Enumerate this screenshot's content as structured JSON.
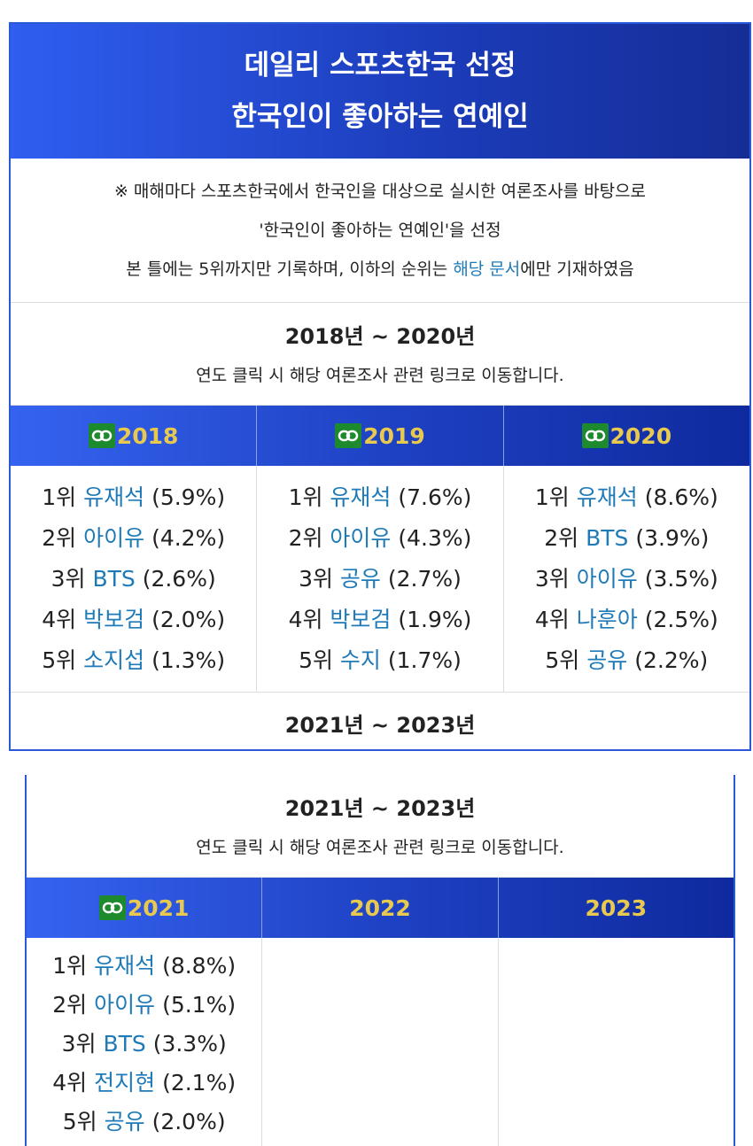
{
  "header": {
    "title_lines": [
      "데일리 스포츠한국 선정",
      "한국인이 좋아하는 연예인"
    ]
  },
  "note": {
    "lines": [
      "※ 매해마다 스포츠한국에서 한국인을 대상으로 실시한 여론조사를 바탕으로",
      "'한국인이 좋아하는 연예인'을 선정"
    ],
    "last_line": {
      "before": "본 틀에는 5위까지만 기록하며, 이하의 순위는 ",
      "link": "해당 문서",
      "after": "에만 기재하였음"
    }
  },
  "sections": [
    {
      "title": "2018년 ~ 2020년",
      "subtitle": "연도 클릭 시 해당 여론조사 관련 링크로 이동합니다.",
      "years": [
        {
          "year": "2018",
          "has_link": true,
          "entries": [
            {
              "rank": "1위",
              "name": "유재석",
              "share": "(5.9%)"
            },
            {
              "rank": "2위",
              "name": "아이유",
              "share": "(4.2%)"
            },
            {
              "rank": "3위",
              "name": "BTS",
              "share": "(2.6%)"
            },
            {
              "rank": "4위",
              "name": "박보검",
              "share": "(2.0%)"
            },
            {
              "rank": "5위",
              "name": "소지섭",
              "share": "(1.3%)"
            }
          ]
        },
        {
          "year": "2019",
          "has_link": true,
          "entries": [
            {
              "rank": "1위",
              "name": "유재석",
              "share": "(7.6%)"
            },
            {
              "rank": "2위",
              "name": "아이유",
              "share": "(4.3%)"
            },
            {
              "rank": "3위",
              "name": "공유",
              "share": "(2.7%)"
            },
            {
              "rank": "4위",
              "name": "박보검",
              "share": "(1.9%)"
            },
            {
              "rank": "5위",
              "name": "수지",
              "share": "(1.7%)"
            }
          ]
        },
        {
          "year": "2020",
          "has_link": true,
          "entries": [
            {
              "rank": "1위",
              "name": "유재석",
              "share": "(8.6%)"
            },
            {
              "rank": "2위",
              "name": "BTS",
              "share": "(3.9%)"
            },
            {
              "rank": "3위",
              "name": "아이유",
              "share": "(3.5%)"
            },
            {
              "rank": "4위",
              "name": "나훈아",
              "share": "(2.5%)"
            },
            {
              "rank": "5위",
              "name": "공유",
              "share": "(2.2%)"
            }
          ]
        }
      ],
      "footer": "2021년 ~ 2023년"
    },
    {
      "title": "2021년 ~ 2023년",
      "subtitle": "연도 클릭 시 해당 여론조사 관련 링크로 이동합니다.",
      "years": [
        {
          "year": "2021",
          "has_link": true,
          "entries": [
            {
              "rank": "1위",
              "name": "유재석",
              "share": "(8.8%)"
            },
            {
              "rank": "2위",
              "name": "아이유",
              "share": "(5.1%)"
            },
            {
              "rank": "3위",
              "name": "BTS",
              "share": "(3.3%)"
            },
            {
              "rank": "4위",
              "name": "전지현",
              "share": "(2.1%)"
            },
            {
              "rank": "5위",
              "name": "공유",
              "share": "(2.0%)"
            }
          ]
        },
        {
          "year": "2022",
          "has_link": false,
          "entries": []
        },
        {
          "year": "2023",
          "has_link": false,
          "entries": []
        }
      ]
    }
  ]
}
